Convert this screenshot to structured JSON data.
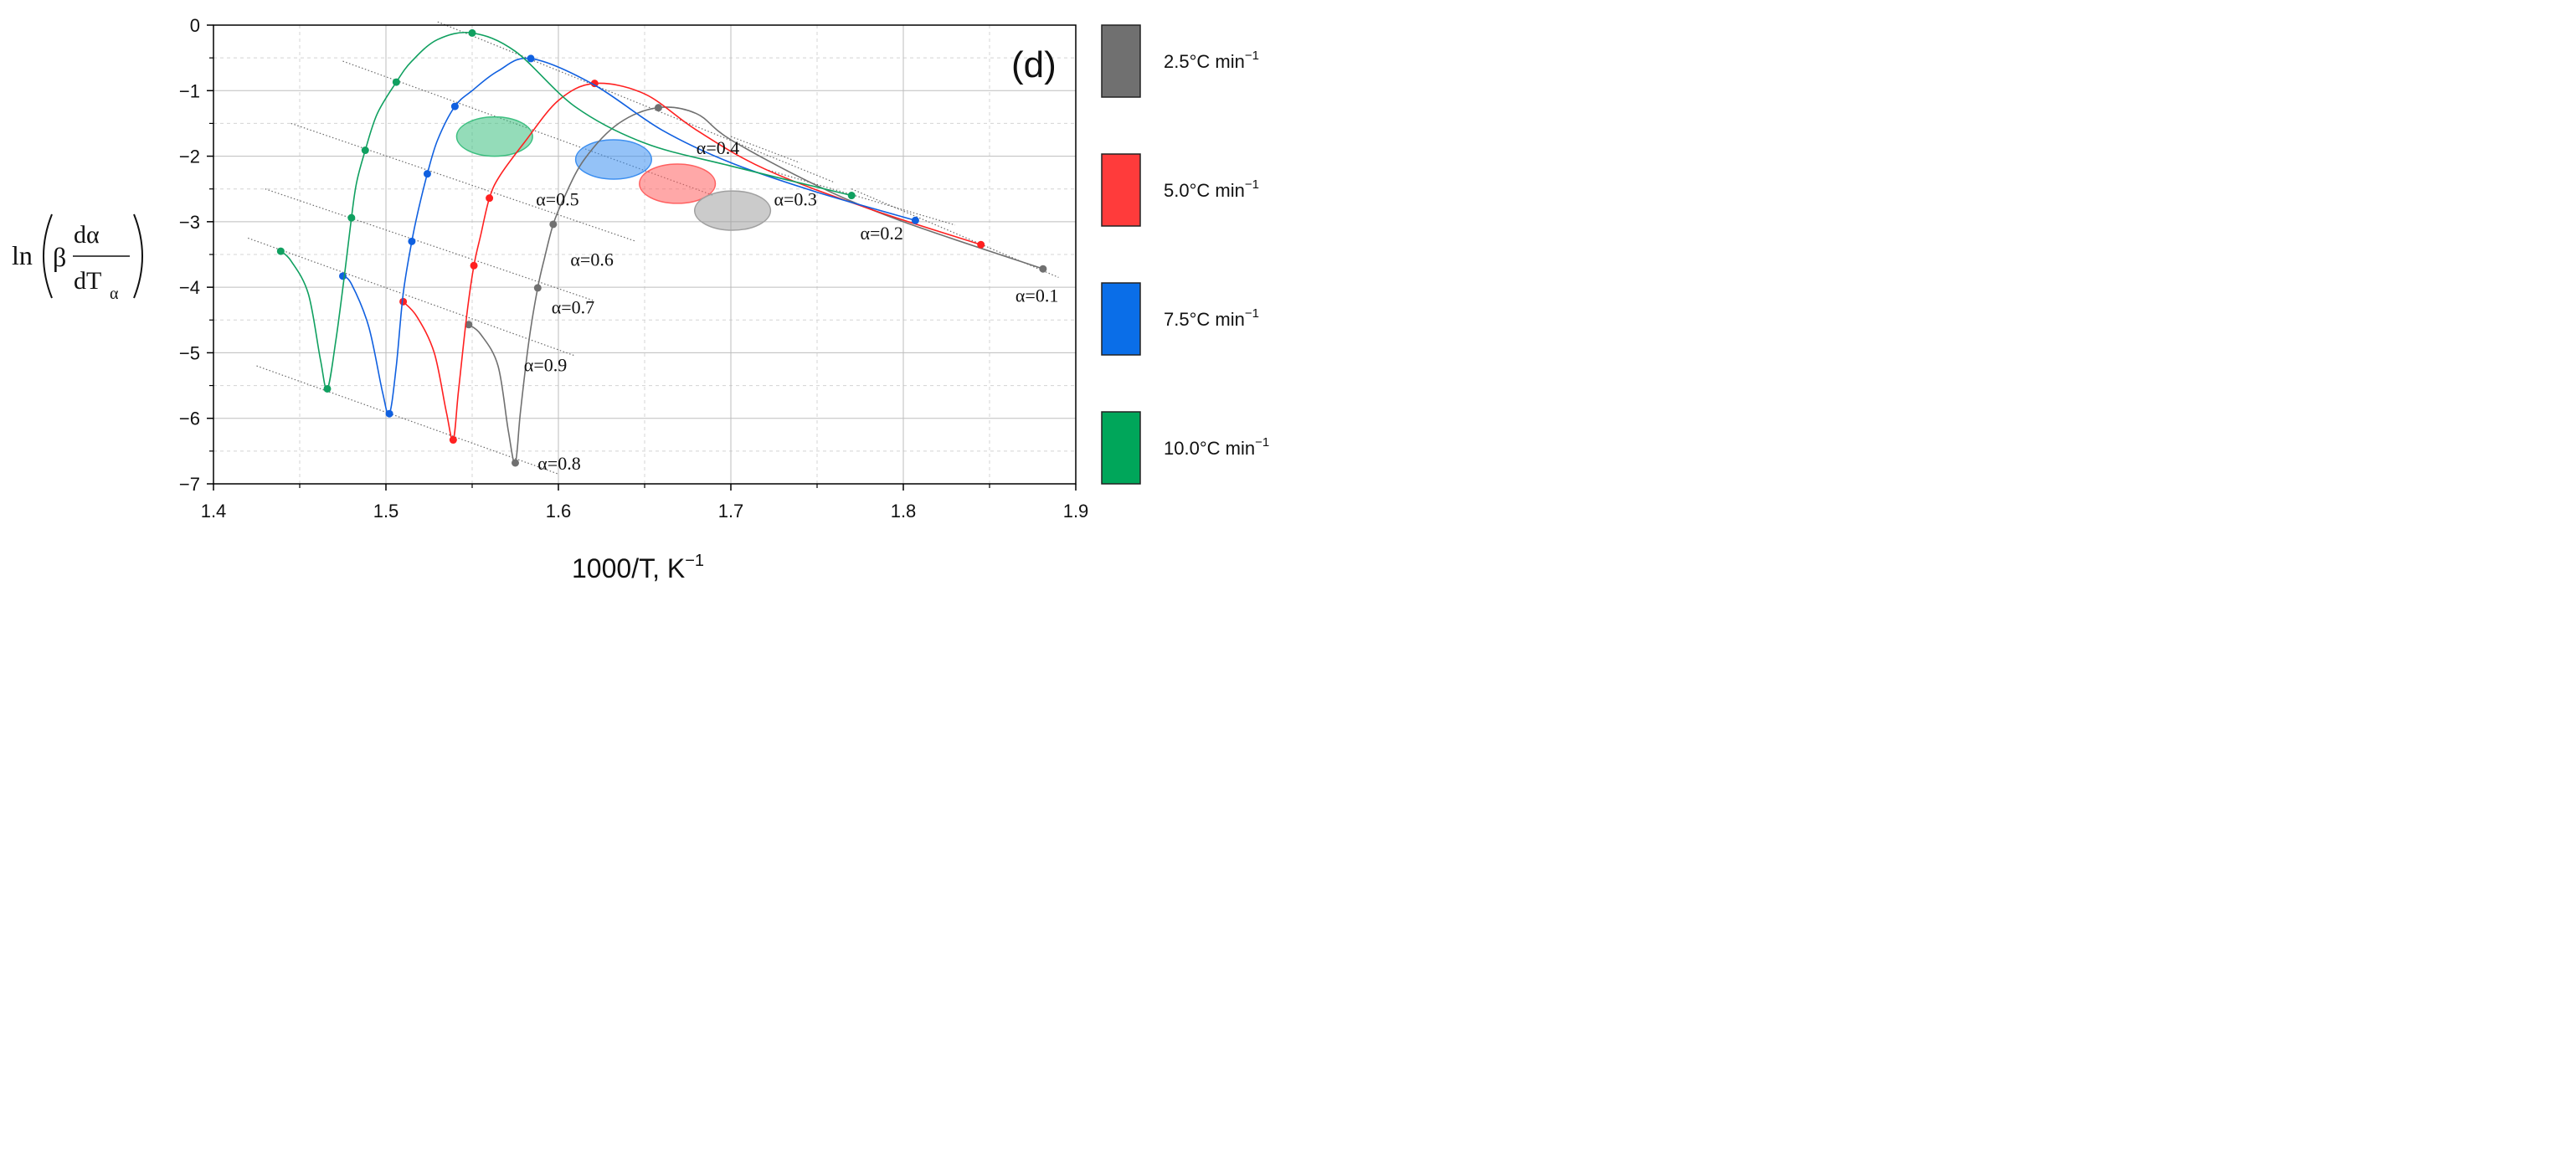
{
  "chart_data": {
    "type": "line",
    "panel_label": "(d)",
    "xlabel": "1000/T, K",
    "xlabel_sup": "−1",
    "ylabel": {
      "ln": "ln",
      "beta": "β",
      "numerator": "dα",
      "denominator": "dT",
      "subscript": "α"
    },
    "xlim": [
      1.4,
      1.9
    ],
    "ylim": [
      -7,
      0
    ],
    "xticks": [
      {
        "value": 1.4,
        "label": "1.4"
      },
      {
        "value": 1.5,
        "label": "1.5"
      },
      {
        "value": 1.6,
        "label": "1.6"
      },
      {
        "value": 1.7,
        "label": "1.7"
      },
      {
        "value": 1.8,
        "label": "1.8"
      },
      {
        "value": 1.9,
        "label": "1.9"
      }
    ],
    "yticks": [
      {
        "value": 0,
        "label": "0"
      },
      {
        "value": -1,
        "label": "−1"
      },
      {
        "value": -2,
        "label": "−2"
      },
      {
        "value": -3,
        "label": "−3"
      },
      {
        "value": -4,
        "label": "−4"
      },
      {
        "value": -5,
        "label": "−5"
      },
      {
        "value": -6,
        "label": "−6"
      },
      {
        "value": -7,
        "label": "−7"
      }
    ],
    "grid": true,
    "series": [
      {
        "name": "2.5°C min",
        "name_sup": "−1",
        "color": "#707070",
        "points": [
          [
            1.881,
            -3.72
          ],
          [
            1.658,
            -1.26
          ],
          [
            1.597,
            -3.04
          ],
          [
            1.588,
            -4.01
          ],
          [
            1.548,
            -4.57
          ],
          [
            1.575,
            -6.68
          ]
        ],
        "curve": [
          [
            1.881,
            -3.72
          ],
          [
            1.8,
            -3.0
          ],
          [
            1.75,
            -2.45
          ],
          [
            1.7,
            -1.75
          ],
          [
            1.68,
            -1.35
          ],
          [
            1.658,
            -1.26
          ],
          [
            1.635,
            -1.5
          ],
          [
            1.615,
            -2.05
          ],
          [
            1.603,
            -2.65
          ],
          [
            1.597,
            -3.04
          ],
          [
            1.592,
            -3.55
          ],
          [
            1.588,
            -4.01
          ],
          [
            1.583,
            -4.8
          ],
          [
            1.578,
            -5.9
          ],
          [
            1.575,
            -6.68
          ],
          [
            1.571,
            -6.2
          ],
          [
            1.565,
            -5.2
          ],
          [
            1.555,
            -4.72
          ],
          [
            1.548,
            -4.57
          ]
        ]
      },
      {
        "name": "5.0°C min",
        "name_sup": "−1",
        "color": "#ff2020",
        "points": [
          [
            1.845,
            -3.35
          ],
          [
            1.621,
            -0.89
          ],
          [
            1.56,
            -2.64
          ],
          [
            1.551,
            -3.67
          ],
          [
            1.51,
            -4.22
          ],
          [
            1.539,
            -6.33
          ]
        ],
        "curve": [
          [
            1.845,
            -3.35
          ],
          [
            1.78,
            -2.8
          ],
          [
            1.72,
            -2.2
          ],
          [
            1.68,
            -1.6
          ],
          [
            1.65,
            -1.05
          ],
          [
            1.621,
            -0.89
          ],
          [
            1.6,
            -1.15
          ],
          [
            1.58,
            -1.8
          ],
          [
            1.566,
            -2.3
          ],
          [
            1.56,
            -2.64
          ],
          [
            1.555,
            -3.2
          ],
          [
            1.551,
            -3.67
          ],
          [
            1.547,
            -4.4
          ],
          [
            1.542,
            -5.6
          ],
          [
            1.539,
            -6.33
          ],
          [
            1.535,
            -5.9
          ],
          [
            1.528,
            -5.0
          ],
          [
            1.518,
            -4.45
          ],
          [
            1.51,
            -4.22
          ]
        ]
      },
      {
        "name": "7.5°C min",
        "name_sup": "−1",
        "color": "#1060e0",
        "points": [
          [
            1.807,
            -2.98
          ],
          [
            1.584,
            -0.51
          ],
          [
            1.54,
            -1.24
          ],
          [
            1.524,
            -2.27
          ],
          [
            1.515,
            -3.3
          ],
          [
            1.475,
            -3.83
          ],
          [
            1.502,
            -5.93
          ]
        ],
        "curve": [
          [
            1.807,
            -2.98
          ],
          [
            1.75,
            -2.55
          ],
          [
            1.7,
            -2.1
          ],
          [
            1.66,
            -1.6
          ],
          [
            1.62,
            -0.9
          ],
          [
            1.584,
            -0.51
          ],
          [
            1.565,
            -0.7
          ],
          [
            1.55,
            -1.0
          ],
          [
            1.54,
            -1.24
          ],
          [
            1.53,
            -1.75
          ],
          [
            1.524,
            -2.27
          ],
          [
            1.519,
            -2.8
          ],
          [
            1.515,
            -3.3
          ],
          [
            1.51,
            -4.1
          ],
          [
            1.506,
            -5.2
          ],
          [
            1.502,
            -5.93
          ],
          [
            1.498,
            -5.6
          ],
          [
            1.49,
            -4.6
          ],
          [
            1.48,
            -3.95
          ],
          [
            1.475,
            -3.83
          ]
        ]
      },
      {
        "name": "10.0°C min",
        "name_sup": "−1",
        "color": "#10a060",
        "points": [
          [
            1.77,
            -2.6
          ],
          [
            1.55,
            -0.12
          ],
          [
            1.506,
            -0.87
          ],
          [
            1.488,
            -1.91
          ],
          [
            1.48,
            -2.94
          ],
          [
            1.439,
            -3.45
          ],
          [
            1.466,
            -5.55
          ]
        ],
        "curve": [
          [
            1.77,
            -2.6
          ],
          [
            1.7,
            -2.15
          ],
          [
            1.65,
            -1.8
          ],
          [
            1.61,
            -1.25
          ],
          [
            1.575,
            -0.4
          ],
          [
            1.55,
            -0.12
          ],
          [
            1.53,
            -0.22
          ],
          [
            1.515,
            -0.55
          ],
          [
            1.506,
            -0.87
          ],
          [
            1.495,
            -1.35
          ],
          [
            1.488,
            -1.91
          ],
          [
            1.483,
            -2.4
          ],
          [
            1.48,
            -2.94
          ],
          [
            1.476,
            -3.8
          ],
          [
            1.471,
            -4.8
          ],
          [
            1.466,
            -5.55
          ],
          [
            1.462,
            -5.1
          ],
          [
            1.455,
            -4.1
          ],
          [
            1.445,
            -3.6
          ],
          [
            1.439,
            -3.45
          ]
        ]
      }
    ],
    "isoconversional_lines": [
      {
        "label": "α=0.1",
        "from": [
          1.77,
          -2.5
        ],
        "to": [
          1.89,
          -3.85
        ],
        "label_at": [
          1.865,
          -4.22
        ]
      },
      {
        "label": "α=0.2",
        "from": [
          1.72,
          -2.2
        ],
        "to": [
          1.83,
          -3.05
        ],
        "label_at": [
          1.775,
          -3.27
        ]
      },
      {
        "label": "α=0.3",
        "from": [
          1.7,
          -1.7
        ],
        "to": [
          1.74,
          -2.1
        ],
        "label_at": [
          1.725,
          -2.75
        ]
      },
      {
        "label": "α=0.4",
        "from": [
          1.53,
          0.05
        ],
        "to": [
          1.76,
          -2.4
        ],
        "label_at": [
          1.68,
          -1.97
        ]
      },
      {
        "label": "α=0.5",
        "from": [
          1.475,
          -0.55
        ],
        "to": [
          1.69,
          -2.6
        ],
        "label_at": [
          1.587,
          -2.75
        ]
      },
      {
        "label": "α=0.6",
        "from": [
          1.445,
          -1.5
        ],
        "to": [
          1.645,
          -3.3
        ],
        "label_at": [
          1.607,
          -3.67
        ]
      },
      {
        "label": "α=0.7",
        "from": [
          1.43,
          -2.5
        ],
        "to": [
          1.62,
          -4.2
        ],
        "label_at": [
          1.596,
          -4.4
        ]
      },
      {
        "label": "α=0.8",
        "from": [
          1.425,
          -5.2
        ],
        "to": [
          1.6,
          -6.85
        ],
        "label_at": [
          1.588,
          -6.78
        ]
      },
      {
        "label": "α=0.9",
        "from": [
          1.42,
          -3.25
        ],
        "to": [
          1.61,
          -5.05
        ],
        "label_at": [
          1.58,
          -5.28
        ]
      }
    ],
    "ellipses": [
      {
        "color": "#3dbf80",
        "cx": 1.563,
        "cy": -1.7,
        "rx": 0.022,
        "ry": 0.3
      },
      {
        "color": "#3d8ff0",
        "cx": 1.632,
        "cy": -2.05,
        "rx": 0.022,
        "ry": 0.3
      },
      {
        "color": "#ff6060",
        "cx": 1.669,
        "cy": -2.42,
        "rx": 0.022,
        "ry": 0.3
      },
      {
        "color": "#a0a0a0",
        "cx": 1.701,
        "cy": -2.83,
        "rx": 0.022,
        "ry": 0.3
      }
    ],
    "legend": [
      {
        "label": "2.5°C min",
        "sup": "−1",
        "color": "#707070"
      },
      {
        "label": "5.0°C min",
        "sup": "−1",
        "color": "#ff3b3b"
      },
      {
        "label": "7.5°C min",
        "sup": "−1",
        "color": "#0a6ee8"
      },
      {
        "label": "10.0°C min",
        "sup": "−1",
        "color": "#00a65a"
      }
    ]
  }
}
